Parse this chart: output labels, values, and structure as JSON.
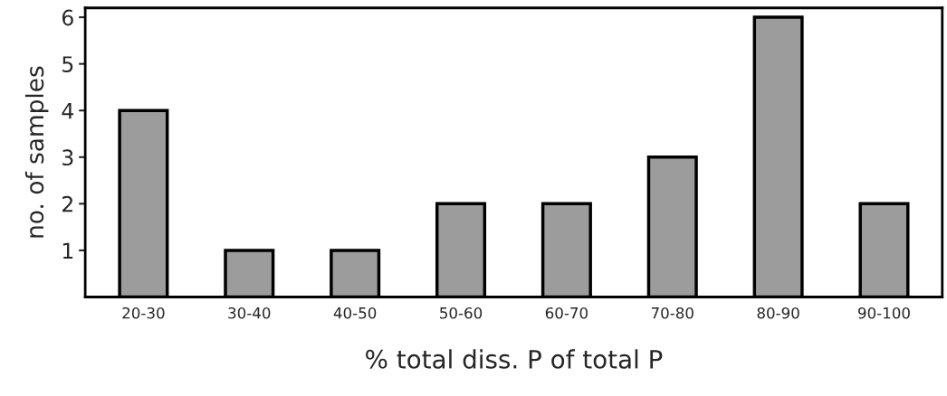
{
  "chart_data": {
    "type": "bar",
    "xlabel": "% total diss. P of total P",
    "ylabel": "no. of samples",
    "categories": [
      "20-30",
      "30-40",
      "40-50",
      "50-60",
      "60-70",
      "70-80",
      "80-90",
      "90-100"
    ],
    "values": [
      4,
      1,
      1,
      2,
      2,
      3,
      6,
      2
    ],
    "color": "#9c9c9c",
    "ylim": [
      0,
      6.2
    ],
    "yticks": [
      1,
      2,
      3,
      4,
      5,
      6
    ],
    "grid": false,
    "legend": false
  }
}
